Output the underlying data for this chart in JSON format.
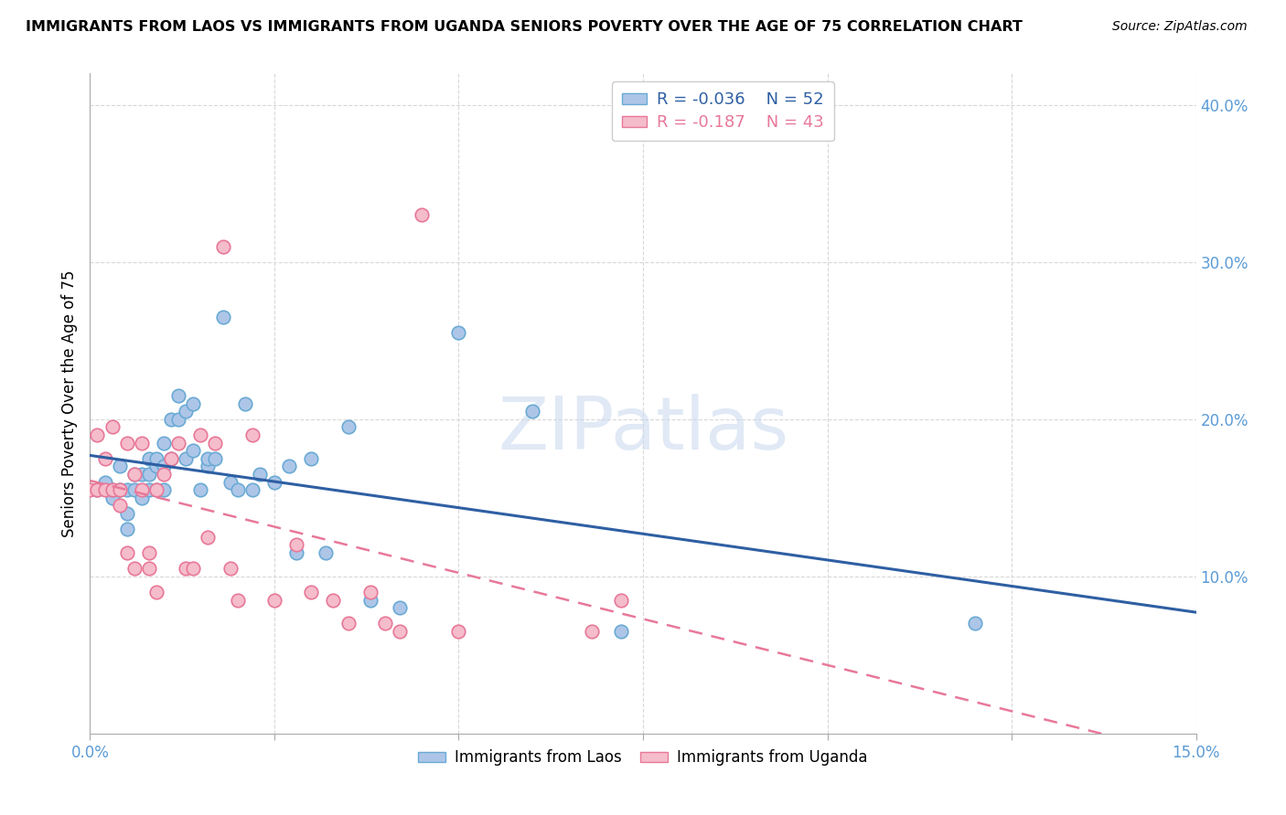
{
  "title": "IMMIGRANTS FROM LAOS VS IMMIGRANTS FROM UGANDA SENIORS POVERTY OVER THE AGE OF 75 CORRELATION CHART",
  "source": "Source: ZipAtlas.com",
  "ylabel": "Seniors Poverty Over the Age of 75",
  "xlim": [
    0.0,
    0.15
  ],
  "ylim": [
    0.0,
    0.42
  ],
  "x_ticks": [
    0.0,
    0.025,
    0.05,
    0.075,
    0.1,
    0.125,
    0.15
  ],
  "x_tick_labels": [
    "0.0%",
    "",
    "",
    "",
    "",
    "",
    "15.0%"
  ],
  "y_ticks_right": [
    0.1,
    0.2,
    0.3,
    0.4
  ],
  "y_tick_labels_right": [
    "10.0%",
    "20.0%",
    "30.0%",
    "40.0%"
  ],
  "laos_color": "#adc6e8",
  "laos_edge_color": "#6aaad4",
  "uganda_color": "#f5bccb",
  "uganda_edge_color": "#e87898",
  "laos_R": -0.036,
  "laos_N": 52,
  "uganda_R": -0.187,
  "uganda_N": 43,
  "regression_laos_color": "#2e5fa3",
  "regression_uganda_color": "#e8789a",
  "watermark": "ZIPatlas",
  "laos_x": [
    0.001,
    0.002,
    0.003,
    0.003,
    0.004,
    0.004,
    0.005,
    0.005,
    0.005,
    0.006,
    0.006,
    0.007,
    0.007,
    0.008,
    0.008,
    0.008,
    0.009,
    0.009,
    0.009,
    0.01,
    0.01,
    0.01,
    0.011,
    0.011,
    0.012,
    0.012,
    0.013,
    0.013,
    0.014,
    0.014,
    0.015,
    0.016,
    0.016,
    0.017,
    0.018,
    0.019,
    0.02,
    0.021,
    0.022,
    0.023,
    0.025,
    0.027,
    0.028,
    0.03,
    0.032,
    0.035,
    0.038,
    0.042,
    0.05,
    0.06,
    0.072,
    0.12
  ],
  "laos_y": [
    0.155,
    0.16,
    0.15,
    0.155,
    0.155,
    0.17,
    0.14,
    0.155,
    0.13,
    0.155,
    0.165,
    0.15,
    0.165,
    0.155,
    0.165,
    0.175,
    0.155,
    0.17,
    0.175,
    0.155,
    0.17,
    0.185,
    0.175,
    0.2,
    0.2,
    0.215,
    0.175,
    0.205,
    0.21,
    0.18,
    0.155,
    0.17,
    0.175,
    0.175,
    0.265,
    0.16,
    0.155,
    0.21,
    0.155,
    0.165,
    0.16,
    0.17,
    0.115,
    0.175,
    0.115,
    0.195,
    0.085,
    0.08,
    0.255,
    0.205,
    0.065,
    0.07
  ],
  "uganda_x": [
    0.0,
    0.001,
    0.001,
    0.002,
    0.002,
    0.003,
    0.003,
    0.004,
    0.004,
    0.005,
    0.005,
    0.006,
    0.006,
    0.007,
    0.007,
    0.008,
    0.008,
    0.009,
    0.009,
    0.01,
    0.011,
    0.012,
    0.013,
    0.014,
    0.015,
    0.016,
    0.017,
    0.018,
    0.019,
    0.02,
    0.022,
    0.025,
    0.028,
    0.03,
    0.033,
    0.035,
    0.038,
    0.04,
    0.042,
    0.045,
    0.05,
    0.068,
    0.072
  ],
  "uganda_y": [
    0.155,
    0.155,
    0.19,
    0.155,
    0.175,
    0.155,
    0.195,
    0.145,
    0.155,
    0.185,
    0.115,
    0.165,
    0.105,
    0.155,
    0.185,
    0.115,
    0.105,
    0.155,
    0.09,
    0.165,
    0.175,
    0.185,
    0.105,
    0.105,
    0.19,
    0.125,
    0.185,
    0.31,
    0.105,
    0.085,
    0.19,
    0.085,
    0.12,
    0.09,
    0.085,
    0.07,
    0.09,
    0.07,
    0.065,
    0.33,
    0.065,
    0.065,
    0.085
  ]
}
